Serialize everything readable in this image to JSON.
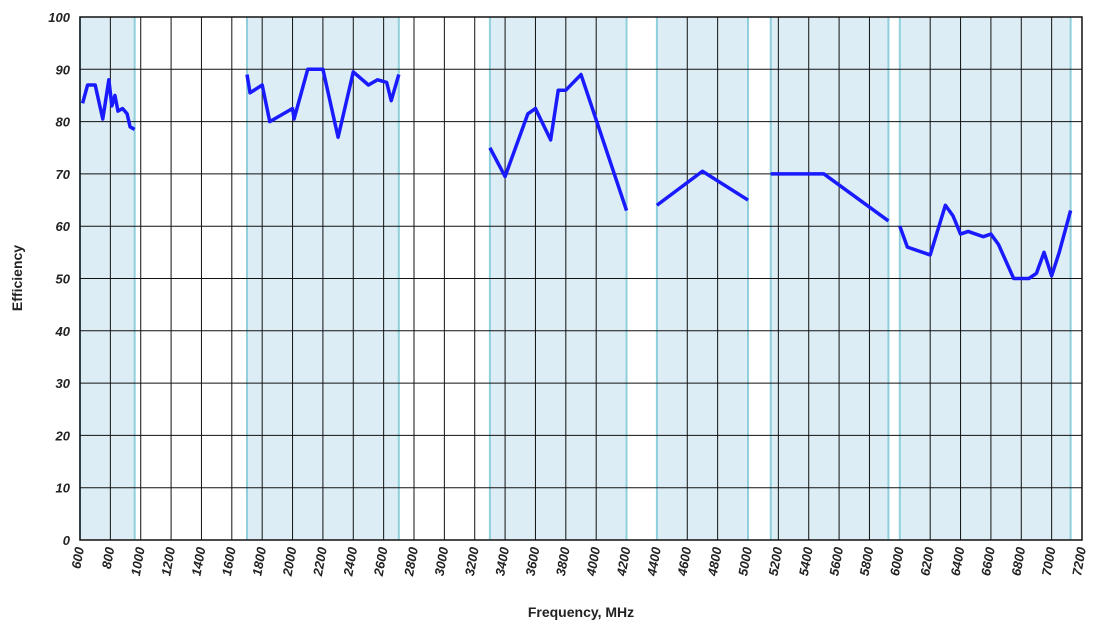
{
  "chart_data": {
    "type": "line",
    "xlabel": "Frequency, MHz",
    "ylabel": "Efficiency",
    "xlim": [
      600,
      7200
    ],
    "ylim": [
      0,
      100
    ],
    "xticks": [
      600,
      800,
      1000,
      1200,
      1400,
      1600,
      1800,
      2000,
      2200,
      2400,
      2600,
      2800,
      3000,
      3200,
      3400,
      3600,
      3800,
      4000,
      4200,
      4400,
      4600,
      4800,
      5000,
      5200,
      5400,
      5600,
      5800,
      6000,
      6200,
      6400,
      6600,
      6800,
      7000,
      7200
    ],
    "yticks": [
      0,
      10,
      20,
      30,
      40,
      50,
      60,
      70,
      80,
      90,
      100
    ],
    "grid": true,
    "band_color": "#dcedf5",
    "band_edge_color": "#8fd0dc",
    "bands": [
      [
        600,
        960
      ],
      [
        1700,
        2700
      ],
      [
        3300,
        4200
      ],
      [
        4400,
        5000
      ],
      [
        5150,
        5925
      ],
      [
        6000,
        7125
      ]
    ],
    "series": [
      {
        "color": "#1a1aff",
        "x": [
          617,
          650,
          700,
          750,
          790,
          810,
          830,
          850,
          880,
          910,
          930,
          960,
          null,
          1700,
          1720,
          1800,
          1850,
          2000,
          2010,
          2100,
          2200,
          2300,
          2400,
          2500,
          2560,
          2620,
          2650,
          2700,
          null,
          3300,
          3400,
          3550,
          3600,
          3700,
          3750,
          3800,
          3900,
          4200,
          null,
          4400,
          4700,
          5000,
          null,
          5150,
          5500,
          5925,
          null,
          6000,
          6050,
          6200,
          6300,
          6350,
          6400,
          6450,
          6550,
          6600,
          6650,
          6750,
          6850,
          6900,
          6950,
          7000,
          7050,
          7125
        ],
        "values": [
          83.5,
          87,
          87,
          80.5,
          88,
          83,
          85,
          82,
          82.5,
          81.5,
          79,
          78.5,
          null,
          89,
          85.5,
          87,
          80,
          82.5,
          80.5,
          90,
          90,
          77,
          89.5,
          87,
          88,
          87.5,
          84,
          89,
          null,
          75,
          69.5,
          81.5,
          82.5,
          76.5,
          86,
          86,
          89,
          63,
          null,
          64,
          70.5,
          65,
          null,
          70,
          70,
          61,
          null,
          60,
          56,
          54.5,
          64,
          62,
          58.5,
          59,
          58,
          58.5,
          56.5,
          50,
          50,
          51,
          55,
          50.5,
          55,
          63
        ]
      }
    ]
  }
}
